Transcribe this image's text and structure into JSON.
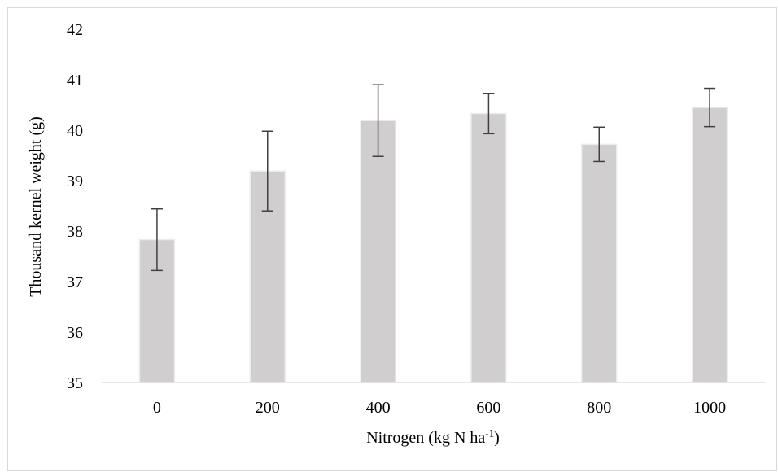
{
  "chart_data": {
    "type": "bar",
    "categories": [
      "0",
      "200",
      "400",
      "600",
      "800",
      "1000"
    ],
    "values": [
      37.83,
      39.19,
      40.19,
      40.33,
      39.72,
      40.45
    ],
    "error": [
      0.61,
      0.79,
      0.71,
      0.4,
      0.34,
      0.38
    ],
    "title": "",
    "xlabel": {
      "text": "Nitrogen (kg N ha",
      "superscript": "-1",
      "suffix": ")"
    },
    "ylabel": "Thousand kernel weight (g)",
    "ylim": [
      35,
      42
    ],
    "yticks": [
      "35",
      "36",
      "37",
      "38",
      "39",
      "40",
      "41",
      "42"
    ],
    "grid": false,
    "legend": "none",
    "colors": {
      "bar_fill": "#d0cece",
      "bar_stroke": "#ececec",
      "error_bar": "#404040",
      "axis": "#d9d9d9"
    }
  }
}
